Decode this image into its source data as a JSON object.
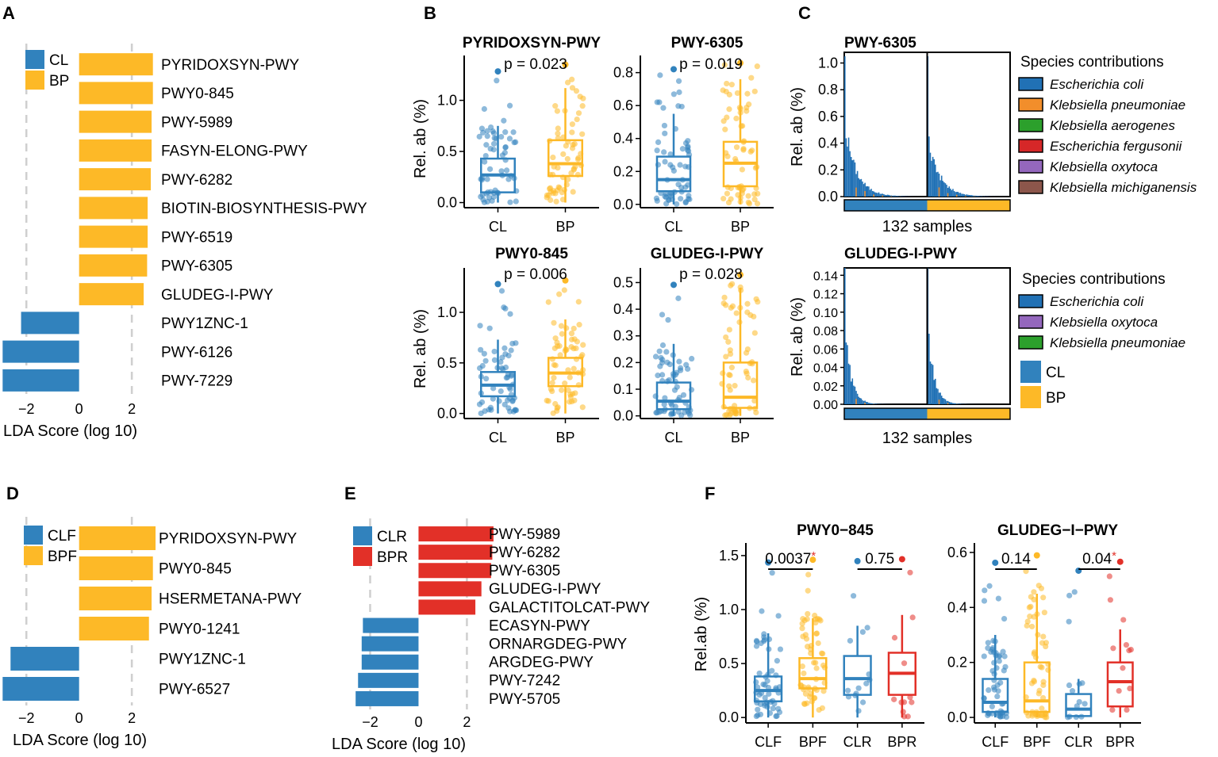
{
  "colors": {
    "CL": "#3182BD",
    "BP": "#FDB927",
    "BPR": "#E23028",
    "ecoli": "#2171B5",
    "kpneu": "#F28E2B",
    "kaero": "#2CA02C",
    "kferg": "#D62728",
    "koxy": "#9467BD",
    "kmich": "#8C564B"
  },
  "chart_data": [
    {
      "id": "A",
      "type": "bar",
      "orientation": "horizontal",
      "panel_label": "A",
      "xlabel": "LDA Score (log 10)",
      "xlim": [
        -3,
        3.2
      ],
      "xticks": [
        -2,
        0,
        2
      ],
      "xtick_labels": [
        "−2",
        "0",
        "2"
      ],
      "legend": [
        "CL",
        "BP"
      ],
      "categories": [
        "PYRIDOXSYN-PWY",
        "PWY0-845",
        "PWY-5989",
        "FASYN-ELONG-PWY",
        "PWY-6282",
        "BIOTIN-BIOSYNTHESIS-PWY",
        "PWY-6519",
        "PWY-6305",
        "GLUDEG-I-PWY",
        "PWY1ZNC-1",
        "PWY-6126",
        "PWY-7229"
      ],
      "values": [
        2.8,
        2.8,
        2.75,
        2.75,
        2.72,
        2.6,
        2.6,
        2.58,
        2.45,
        -2.2,
        -2.9,
        -2.9
      ],
      "groups": [
        "BP",
        "BP",
        "BP",
        "BP",
        "BP",
        "BP",
        "BP",
        "BP",
        "BP",
        "CL",
        "CL",
        "CL"
      ]
    },
    {
      "id": "B",
      "type": "box",
      "panel_label": "B",
      "ylabel": "Rel. ab (%)",
      "categories": [
        "CL",
        "BP"
      ],
      "plots": [
        {
          "title": "PYRIDOXSYN-PWY",
          "pvalue": "p = 0.023",
          "ylim": [
            -0.05,
            1.4
          ],
          "yticks": [
            0.0,
            0.5,
            1.0
          ],
          "ytick_labels": [
            "0.0",
            "0.5",
            "1.0"
          ],
          "boxes": [
            {
              "group": "CL",
              "q1": 0.1,
              "median": 0.27,
              "q3": 0.43,
              "low": 0.0,
              "high": 0.75
            },
            {
              "group": "BP",
              "q1": 0.26,
              "median": 0.38,
              "q3": 0.61,
              "low": 0.0,
              "high": 1.12
            }
          ]
        },
        {
          "title": "PWY-6305",
          "pvalue": "p = 0.019",
          "ylim": [
            -0.02,
            0.88
          ],
          "yticks": [
            0.0,
            0.2,
            0.4,
            0.6,
            0.8
          ],
          "ytick_labels": [
            "0.0",
            "0.2",
            "0.4",
            "0.6",
            "0.8"
          ],
          "boxes": [
            {
              "group": "CL",
              "q1": 0.08,
              "median": 0.15,
              "q3": 0.29,
              "low": 0.0,
              "high": 0.55
            },
            {
              "group": "BP",
              "q1": 0.11,
              "median": 0.25,
              "q3": 0.38,
              "low": 0.0,
              "high": 0.76
            }
          ]
        },
        {
          "title": "PWY0-845",
          "pvalue": "p = 0.006",
          "ylim": [
            -0.05,
            1.4
          ],
          "yticks": [
            0.0,
            0.5,
            1.0
          ],
          "ytick_labels": [
            "0.0",
            "0.5",
            "1.0"
          ],
          "boxes": [
            {
              "group": "CL",
              "q1": 0.17,
              "median": 0.28,
              "q3": 0.41,
              "low": 0.0,
              "high": 0.73
            },
            {
              "group": "BP",
              "q1": 0.27,
              "median": 0.4,
              "q3": 0.55,
              "low": 0.0,
              "high": 0.93
            }
          ]
        },
        {
          "title": "GLUDEG-I-PWY",
          "pvalue": "p = 0.028",
          "ylim": [
            -0.01,
            0.54
          ],
          "yticks": [
            0.0,
            0.1,
            0.2,
            0.3,
            0.4,
            0.5
          ],
          "ytick_labels": [
            "0.0",
            "0.1",
            "0.2",
            "0.3",
            "0.4",
            "0.5"
          ],
          "boxes": [
            {
              "group": "CL",
              "q1": 0.025,
              "median": 0.055,
              "q3": 0.125,
              "low": 0.0,
              "high": 0.27
            },
            {
              "group": "BP",
              "q1": 0.03,
              "median": 0.07,
              "q3": 0.2,
              "low": 0.0,
              "high": 0.48
            }
          ]
        }
      ]
    },
    {
      "id": "C",
      "type": "stacked-bar",
      "panel_label": "C",
      "ylabel": "Rel. ab (%)",
      "xlabel": "132 samples",
      "n_samples": 132,
      "plots": [
        {
          "title": "PWY-6305",
          "ylim": [
            0,
            1.08
          ],
          "yticks": [
            0.0,
            0.2,
            0.4,
            0.6,
            0.8,
            1.0
          ],
          "ytick_labels": [
            "0.0",
            "0.2",
            "0.4",
            "0.6",
            "0.8",
            "1.0"
          ],
          "legend_title": "Species contributions",
          "species": [
            "Escherichia coli",
            "Klebsiella pneumoniae",
            "Klebsiella aerogenes",
            "Escherichia fergusonii",
            "Klebsiella oxytoca",
            "Klebsiella michiganensis"
          ],
          "species_colors": [
            "ecoli",
            "kpneu",
            "kaero",
            "kferg",
            "koxy",
            "kmich"
          ]
        },
        {
          "title": "GLUDEG-I-PWY",
          "ylim": [
            0,
            0.148
          ],
          "yticks": [
            0.0,
            0.02,
            0.04,
            0.06,
            0.08,
            0.1,
            0.12,
            0.14
          ],
          "ytick_labels": [
            "0.00",
            "0.02",
            "0.04",
            "0.06",
            "0.08",
            "0.10",
            "0.12",
            "0.14"
          ],
          "legend_title": "Species contributions",
          "species": [
            "Escherichia coli",
            "Klebsiella oxytoca",
            "Klebsiella pneumoniae"
          ],
          "species_colors": [
            "ecoli",
            "koxy",
            "kaero"
          ],
          "group_legend": [
            "CL",
            "BP"
          ]
        }
      ]
    },
    {
      "id": "D",
      "type": "bar",
      "orientation": "horizontal",
      "panel_label": "D",
      "xlabel": "LDA Score (log 10)",
      "xlim": [
        -3,
        3.2
      ],
      "xticks": [
        -2,
        0,
        2
      ],
      "xtick_labels": [
        "−2",
        "0",
        "2"
      ],
      "legend": [
        "CLF",
        "BPF"
      ],
      "categories": [
        "PYRIDOXSYN-PWY",
        "PWY0-845",
        "HSERMETANA-PWY",
        "PWY0-1241",
        "PWY1ZNC-1",
        "PWY-6527"
      ],
      "values": [
        2.9,
        2.8,
        2.75,
        2.65,
        -2.6,
        -2.9
      ],
      "groups": [
        "BP",
        "BP",
        "BP",
        "BP",
        "CL",
        "CL"
      ]
    },
    {
      "id": "E",
      "type": "bar",
      "orientation": "horizontal",
      "panel_label": "E",
      "xlabel": "LDA Score (log 10)",
      "xlim": [
        -3,
        3.2
      ],
      "xticks": [
        -2,
        0,
        2
      ],
      "xtick_labels": [
        "−2",
        "0",
        "2"
      ],
      "legend": [
        "CLR",
        "BPR"
      ],
      "categories": [
        "PWY-5989",
        "PWY-6282",
        "PWY-6305",
        "GLUDEG-I-PWY",
        "GALACTITOLCAT-PWY",
        "ECASYN-PWY",
        "ORNARGDEG-PWY",
        "ARGDEG-PWY",
        "PWY-7242",
        "PWY-5705"
      ],
      "values": [
        3.1,
        3.05,
        3.0,
        2.6,
        2.35,
        -2.3,
        -2.35,
        -2.35,
        -2.5,
        -2.6
      ],
      "groups": [
        "BPR",
        "BPR",
        "BPR",
        "BPR",
        "BPR",
        "CL",
        "CL",
        "CL",
        "CL",
        "CL"
      ]
    },
    {
      "id": "F",
      "type": "box",
      "panel_label": "F",
      "ylabel": "Rel.ab (%)",
      "categories": [
        "CLF",
        "BPF",
        "CLR",
        "BPR"
      ],
      "plots": [
        {
          "title": "PWY0−845",
          "ylim": [
            -0.05,
            1.58
          ],
          "yticks": [
            0.0,
            0.5,
            1.0,
            1.5
          ],
          "ytick_labels": [
            "0.0",
            "0.5",
            "1.0",
            "1.5"
          ],
          "comparisons": [
            {
              "pair": [
                0,
                1
              ],
              "label": "0.0037",
              "star": "*"
            },
            {
              "pair": [
                2,
                3
              ],
              "label": "0.75",
              "star": ""
            }
          ],
          "boxes": [
            {
              "group": "CLF",
              "color": "CL",
              "q1": 0.15,
              "median": 0.25,
              "q3": 0.38,
              "low": 0.0,
              "high": 0.78
            },
            {
              "group": "BPF",
              "color": "BP",
              "q1": 0.27,
              "median": 0.36,
              "q3": 0.55,
              "low": 0.0,
              "high": 0.92
            },
            {
              "group": "CLR",
              "color": "CL",
              "q1": 0.21,
              "median": 0.36,
              "q3": 0.57,
              "low": 0.0,
              "high": 0.85
            },
            {
              "group": "BPR",
              "color": "BPR",
              "q1": 0.21,
              "median": 0.41,
              "q3": 0.6,
              "low": 0.0,
              "high": 0.95
            }
          ]
        },
        {
          "title": "GLUDEG−I−PWY",
          "ylim": [
            -0.02,
            0.62
          ],
          "yticks": [
            0.0,
            0.2,
            0.4,
            0.6
          ],
          "ytick_labels": [
            "0.0",
            "0.2",
            "0.4",
            "0.6"
          ],
          "comparisons": [
            {
              "pair": [
                0,
                1
              ],
              "label": "0.14",
              "star": ""
            },
            {
              "pair": [
                2,
                3
              ],
              "label": "0.04",
              "star": "*"
            }
          ],
          "boxes": [
            {
              "group": "CLF",
              "color": "CL",
              "q1": 0.02,
              "median": 0.055,
              "q3": 0.14,
              "low": 0.0,
              "high": 0.3
            },
            {
              "group": "BPF",
              "color": "BP",
              "q1": 0.02,
              "median": 0.06,
              "q3": 0.2,
              "low": 0.0,
              "high": 0.45
            },
            {
              "group": "CLR",
              "color": "CL",
              "q1": 0.005,
              "median": 0.03,
              "q3": 0.085,
              "low": 0.0,
              "high": 0.14
            },
            {
              "group": "BPR",
              "color": "BPR",
              "q1": 0.04,
              "median": 0.13,
              "q3": 0.2,
              "low": 0.0,
              "high": 0.32
            }
          ]
        }
      ]
    }
  ]
}
